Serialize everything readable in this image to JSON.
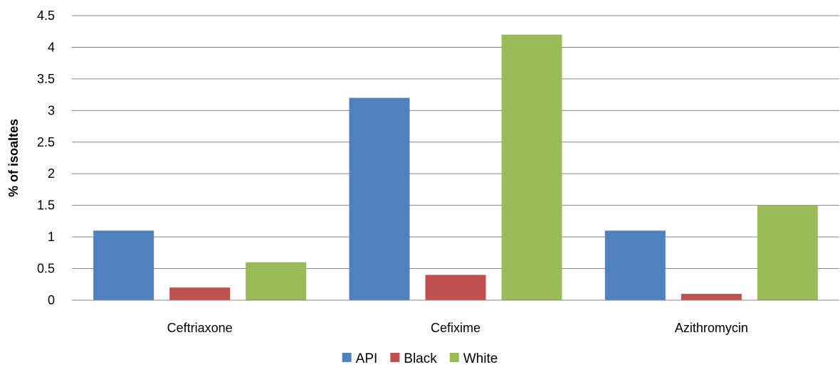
{
  "chart_data": {
    "type": "bar",
    "title": "",
    "xlabel": "",
    "ylabel": "% of isoaltes",
    "categories": [
      "Ceftriaxone",
      "Cefixime",
      "Azithromycin"
    ],
    "series": [
      {
        "name": "API",
        "values": [
          1.1,
          3.2,
          1.1
        ],
        "color": "#4F81BD"
      },
      {
        "name": "Black",
        "values": [
          0.2,
          0.4,
          0.1
        ],
        "color": "#C0504D"
      },
      {
        "name": "White",
        "values": [
          0.6,
          4.2,
          1.5
        ],
        "color": "#9BBB59"
      }
    ],
    "ylim": [
      0,
      4.5
    ],
    "yticks": [
      "0",
      "0.5",
      "1",
      "1.5",
      "2",
      "2.5",
      "3",
      "3.5",
      "4",
      "4.5"
    ],
    "grid": true,
    "legend_position": "bottom"
  }
}
